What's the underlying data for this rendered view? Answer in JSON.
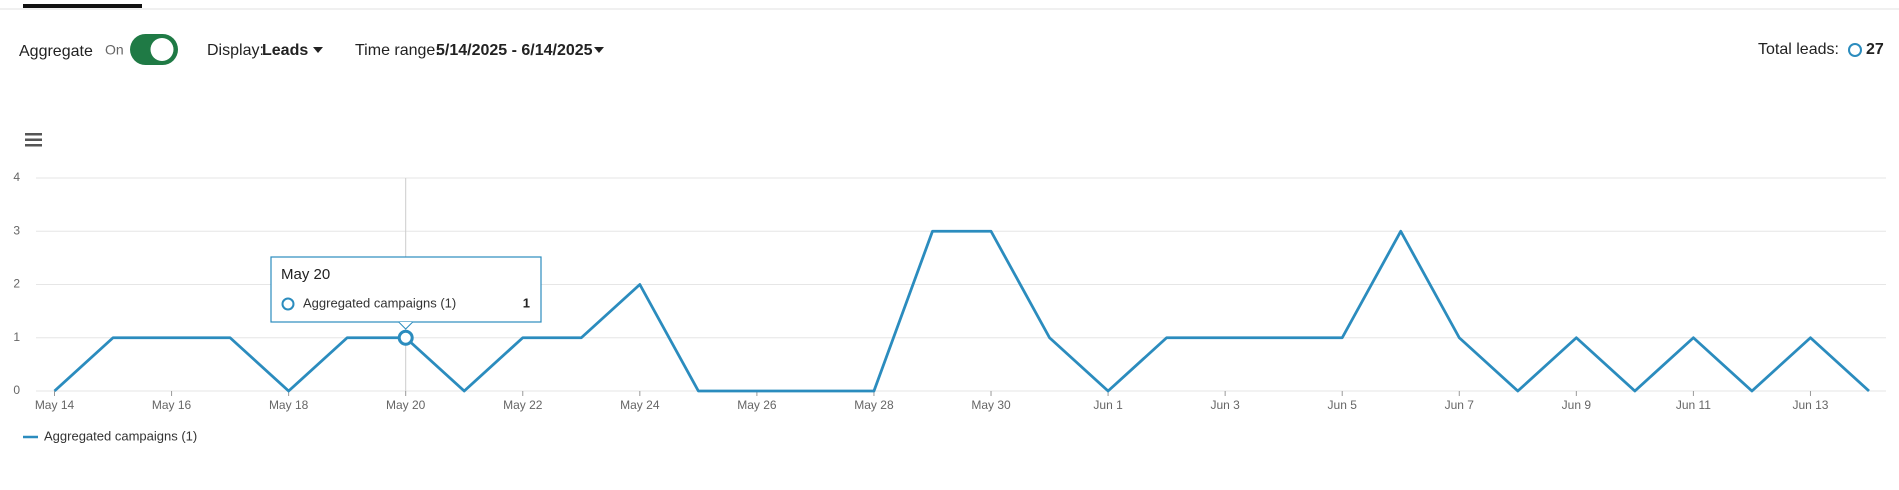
{
  "controls": {
    "aggregate_label": "Aggregate",
    "toggle_state": "On",
    "display_label": "Display:",
    "display_value": "Leads",
    "time_range_label": "Time range:",
    "time_range_value": "5/14/2025 - 6/14/2025",
    "total_label": "Total leads:",
    "total_value": "27"
  },
  "chart_data": {
    "type": "line",
    "categories": [
      "May 14",
      null,
      "May 16",
      null,
      "May 18",
      null,
      "May 20",
      null,
      "May 22",
      null,
      "May 24",
      null,
      "May 26",
      null,
      "May 28",
      null,
      "May 30",
      null,
      "Jun 1",
      null,
      "Jun 3",
      null,
      "Jun 5",
      null,
      "Jun 7",
      null,
      "Jun 9",
      null,
      "Jun 11",
      null,
      "Jun 13",
      null
    ],
    "series": [
      {
        "name": "Aggregated campaigns (1)",
        "color": "#2b8cbe",
        "values": [
          0,
          1,
          1,
          1,
          0,
          1,
          1,
          0,
          1,
          1,
          2,
          0,
          0,
          0,
          0,
          3,
          3,
          1,
          0,
          1,
          1,
          1,
          1,
          3,
          1,
          0,
          1,
          0,
          1,
          0,
          1,
          0
        ]
      }
    ],
    "ylim": [
      0,
      4
    ],
    "yticks": [
      0,
      1,
      2,
      3,
      4
    ],
    "grid": true,
    "tooltip": {
      "title": "May 20",
      "series_name": "Aggregated campaigns (1)",
      "value": 1
    }
  }
}
